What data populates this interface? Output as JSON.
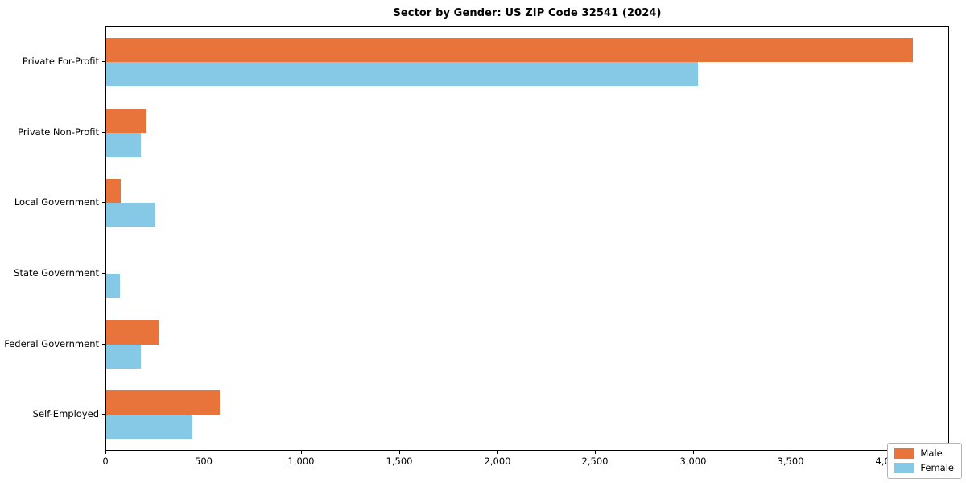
{
  "page": {
    "title": "Sector by Gender: US ZIP Code 32541 (2024)"
  },
  "chart_data": {
    "type": "bar",
    "orientation": "horizontal",
    "title": "Sector by Gender: US ZIP Code 32541 (2024)",
    "categories": [
      "Private For-Profit",
      "Private Non-Profit",
      "Local Government",
      "State Government",
      "Federal Government",
      "Self-Employed"
    ],
    "series": [
      {
        "name": "Male",
        "color": "#E8743B",
        "values": [
          4120,
          200,
          75,
          0,
          270,
          580
        ]
      },
      {
        "name": "Female",
        "color": "#85C9E6",
        "values": [
          3020,
          175,
          250,
          70,
          175,
          440
        ]
      }
    ],
    "xlabel": "",
    "ylabel": "",
    "xlim": [
      0,
      4300
    ],
    "xticks": [
      0,
      500,
      1000,
      1500,
      2000,
      2500,
      3000,
      3500,
      4000
    ],
    "xtick_labels": [
      "0",
      "500",
      "1,000",
      "1,500",
      "2,000",
      "2,500",
      "3,000",
      "3,500",
      "4,000"
    ],
    "grid": false,
    "legend": {
      "position": "lower right",
      "entries": [
        "Male",
        "Female"
      ]
    }
  }
}
